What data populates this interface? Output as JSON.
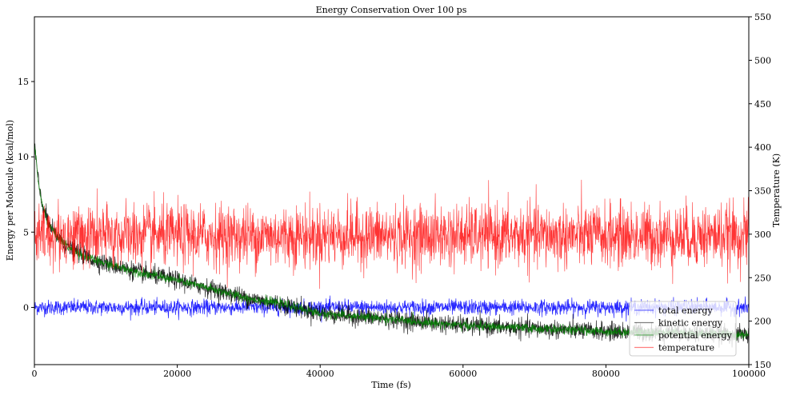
{
  "chart_data": {
    "type": "line",
    "title": "Energy Conservation Over 100 ps",
    "xlabel": "Time (fs)",
    "ylabel": "Energy per Molecule (kcal/mol)",
    "y2label": "Temperature (K)",
    "xlim": [
      0,
      100000
    ],
    "ylim": [
      -3.8,
      19.3
    ],
    "y2lim": [
      150,
      550
    ],
    "xticks": [
      0,
      20000,
      40000,
      60000,
      80000,
      100000
    ],
    "yticks": [
      0,
      5,
      10,
      15
    ],
    "y2ticks": [
      150,
      200,
      250,
      300,
      350,
      400,
      450,
      500,
      550
    ],
    "grid": false,
    "legend_position": "bottom-right",
    "series": [
      {
        "name": "total energy",
        "axis": "left",
        "color": "#0000ff",
        "x": [
          0,
          10000,
          20000,
          30000,
          40000,
          50000,
          60000,
          70000,
          80000,
          90000,
          100000
        ],
        "y": [
          0.0,
          0.0,
          0.0,
          0.0,
          0.0,
          0.0,
          0.0,
          0.0,
          0.0,
          0.0,
          0.0
        ],
        "noise": 0.25
      },
      {
        "name": "kinetic energy",
        "axis": "left",
        "color": "#000000",
        "x": [
          0,
          100,
          500,
          1000,
          2000,
          3000,
          5000,
          8000,
          10000,
          15000,
          20000,
          25000,
          30000,
          35000,
          40000,
          45000,
          50000,
          55000,
          60000,
          65000,
          70000,
          75000,
          80000,
          85000,
          90000,
          95000,
          100000
        ],
        "y": [
          10.8,
          10.5,
          8.5,
          7.0,
          5.5,
          4.8,
          3.9,
          3.2,
          2.9,
          2.3,
          1.8,
          1.2,
          0.6,
          0.2,
          -0.4,
          -0.6,
          -0.8,
          -1.0,
          -1.2,
          -1.3,
          -1.4,
          -1.5,
          -1.6,
          -1.65,
          -1.7,
          -1.75,
          -1.8
        ],
        "noise": 0.3
      },
      {
        "name": "potential energy",
        "axis": "left",
        "color": "#008000",
        "x": [
          0,
          100,
          500,
          1000,
          2000,
          3000,
          5000,
          8000,
          10000,
          15000,
          20000,
          25000,
          30000,
          35000,
          40000,
          45000,
          50000,
          55000,
          60000,
          65000,
          70000,
          75000,
          80000,
          85000,
          90000,
          95000,
          100000
        ],
        "y": [
          10.8,
          10.5,
          8.5,
          7.0,
          5.5,
          4.8,
          3.9,
          3.2,
          2.9,
          2.3,
          1.8,
          1.2,
          0.6,
          0.2,
          -0.4,
          -0.6,
          -0.8,
          -1.0,
          -1.2,
          -1.3,
          -1.4,
          -1.5,
          -1.6,
          -1.65,
          -1.7,
          -1.75,
          -1.8
        ],
        "noise": 0.15
      },
      {
        "name": "temperature",
        "axis": "right",
        "color": "#ff0000",
        "x": [
          0,
          10000,
          20000,
          30000,
          40000,
          50000,
          60000,
          70000,
          80000,
          90000,
          100000
        ],
        "y": [
          298,
          298,
          298,
          298,
          298,
          298,
          298,
          298,
          298,
          298,
          298
        ],
        "noise": 18
      }
    ]
  }
}
